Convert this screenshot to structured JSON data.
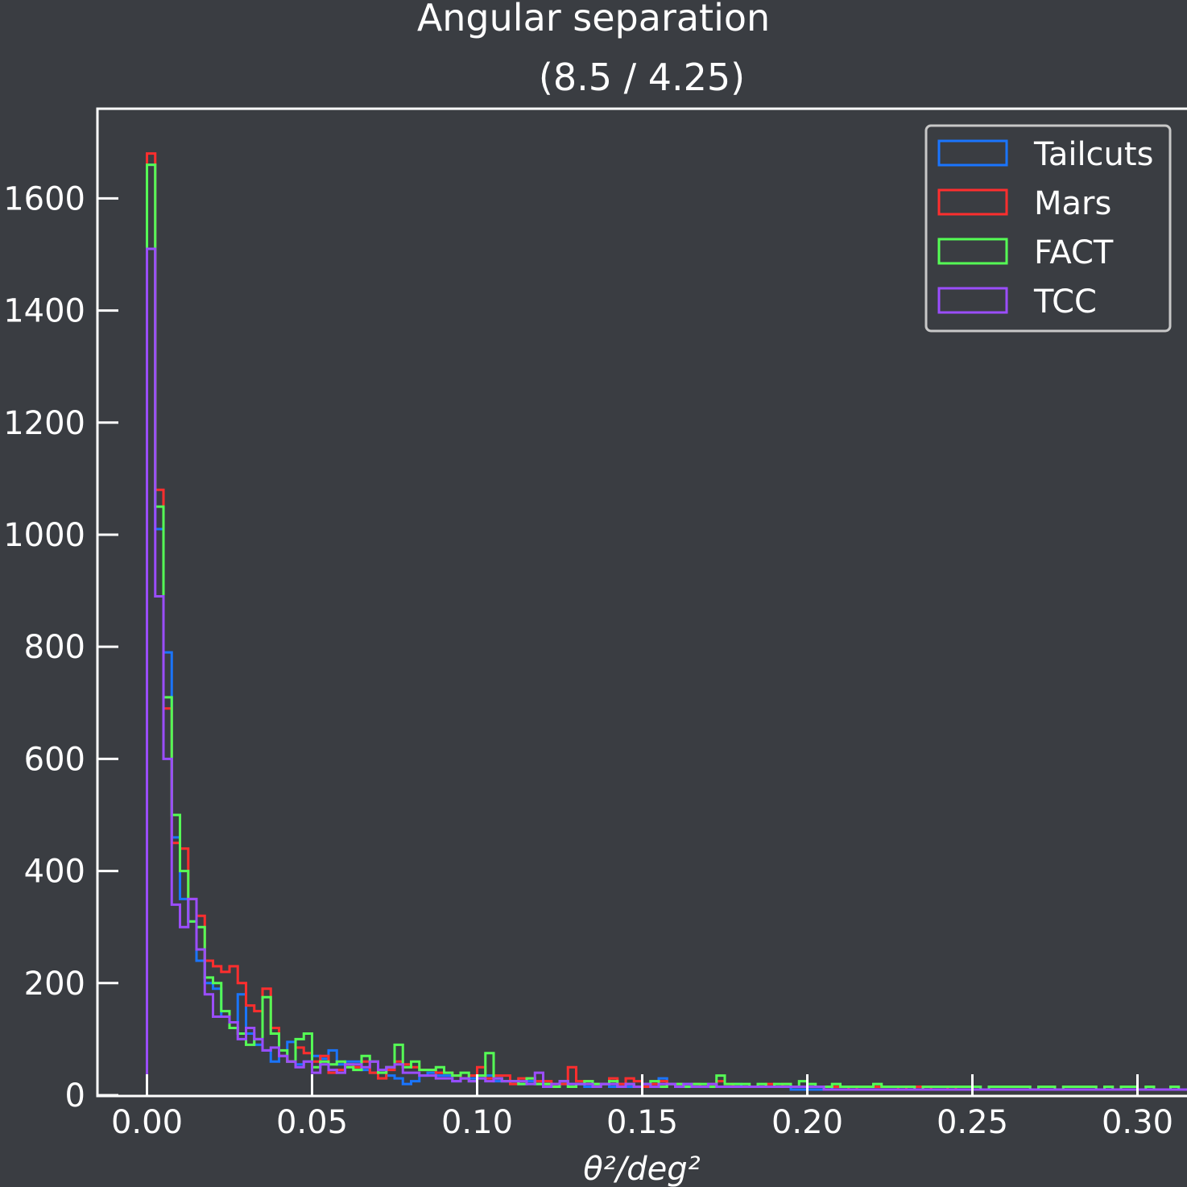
{
  "chart_data": {
    "type": "step-histogram",
    "title": "Angular separation",
    "subtitle": "(8.5 / 4.25)",
    "xlabel": "θ²/deg²",
    "ylabel": "",
    "xlim": [
      -0.015,
      0.315
    ],
    "ylim": [
      0,
      1760
    ],
    "xticks": [
      0.0,
      0.05,
      0.1,
      0.15,
      0.2,
      0.25,
      0.3
    ],
    "xtick_labels": [
      "0.00",
      "0.05",
      "0.10",
      "0.15",
      "0.20",
      "0.25",
      "0.30"
    ],
    "yticks": [
      0,
      200,
      400,
      600,
      800,
      1000,
      1200,
      1400,
      1600
    ],
    "ytick_labels": [
      "0",
      "200",
      "400",
      "600",
      "800",
      "1000",
      "1200",
      "1400",
      "1600"
    ],
    "grid": false,
    "legend_position": "top-right",
    "bin_start": 0.0,
    "bin_width": 0.0025,
    "series": [
      {
        "name": "Tailcuts",
        "color": "#1a75ff",
        "values": [
          1660,
          1010,
          790,
          460,
          350,
          310,
          240,
          200,
          190,
          140,
          130,
          180,
          110,
          90,
          80,
          60,
          70,
          95,
          55,
          60,
          70,
          65,
          80,
          55,
          60,
          60,
          45,
          40,
          45,
          35,
          30,
          20,
          25,
          35,
          40,
          35,
          35,
          25,
          30,
          30,
          30,
          35,
          25,
          25,
          25,
          20,
          25,
          20,
          20,
          15,
          20,
          20,
          20,
          15,
          20,
          20,
          15,
          20,
          15,
          15,
          15,
          15,
          30,
          20,
          15,
          20,
          20,
          15,
          15,
          15,
          15,
          20,
          15,
          15,
          15,
          15,
          15,
          15,
          10,
          10,
          10,
          10,
          15,
          10,
          10,
          10,
          10,
          10,
          10,
          10,
          10,
          10,
          10,
          10,
          10,
          10,
          10,
          10,
          10,
          10,
          10,
          10,
          10,
          10,
          10,
          10,
          10,
          10,
          10,
          10,
          10,
          10,
          10,
          10,
          10,
          10,
          10,
          10,
          10,
          10,
          10,
          10,
          10,
          10,
          10,
          10,
          10,
          10,
          10,
          10,
          10,
          10,
          10,
          10,
          10,
          10,
          10,
          10,
          10,
          10,
          10,
          10,
          10,
          10,
          10,
          10,
          10,
          10,
          10,
          10,
          10,
          10,
          10,
          10,
          10,
          10,
          10,
          10,
          10,
          10,
          10,
          10,
          10,
          10,
          10,
          10,
          10,
          10,
          10,
          10,
          10,
          10,
          10,
          10,
          10,
          10,
          10,
          10,
          10,
          10,
          10,
          10,
          10,
          10,
          10,
          10,
          10,
          10,
          10,
          10,
          10,
          10,
          10,
          10,
          10,
          10,
          10,
          10,
          10,
          10,
          10,
          10,
          10,
          10,
          10,
          10,
          10,
          10,
          10,
          10,
          10,
          10,
          10,
          10,
          10,
          10,
          10,
          10,
          10,
          10,
          10,
          10,
          10,
          10,
          10,
          10,
          10,
          10,
          10,
          25,
          10,
          10,
          10,
          10,
          10,
          10,
          10
        ]
      },
      {
        "name": "Mars",
        "color": "#ff2e2e",
        "values": [
          1680,
          1080,
          690,
          450,
          440,
          350,
          320,
          240,
          230,
          220,
          230,
          200,
          160,
          150,
          190,
          120,
          70,
          60,
          85,
          75,
          60,
          70,
          40,
          45,
          55,
          50,
          60,
          40,
          30,
          45,
          60,
          55,
          50,
          45,
          45,
          40,
          40,
          35,
          30,
          35,
          50,
          30,
          35,
          35,
          20,
          30,
          30,
          25,
          25,
          20,
          20,
          50,
          25,
          25,
          20,
          20,
          30,
          20,
          30,
          25,
          15,
          20,
          25,
          20,
          20,
          15,
          20,
          15,
          20,
          25,
          20,
          15,
          15,
          15,
          15,
          20,
          15,
          20,
          15,
          15,
          15,
          15,
          15,
          15,
          15,
          10,
          15,
          15,
          15,
          15,
          15,
          10,
          15,
          15,
          15,
          10,
          10,
          15,
          10,
          10,
          10,
          10,
          10,
          10,
          10,
          10,
          10,
          10,
          10,
          10,
          10,
          10,
          10,
          10,
          10,
          10,
          10,
          10,
          10,
          10,
          10,
          10,
          10,
          10,
          10,
          10,
          10,
          10,
          10,
          10,
          10,
          10,
          10,
          10,
          10,
          10,
          10,
          10,
          10,
          10,
          10,
          10,
          10,
          10,
          10,
          10,
          10,
          10,
          10,
          10,
          10,
          10,
          10,
          10,
          10,
          10,
          10,
          10,
          10,
          10,
          10,
          10,
          10,
          10,
          10,
          10,
          10,
          10,
          10,
          10,
          10,
          10,
          10,
          10,
          10,
          10,
          10,
          10,
          10,
          10,
          10,
          10,
          10,
          10,
          10,
          10,
          10,
          10,
          10,
          10,
          10,
          10,
          10,
          10,
          10,
          10,
          10,
          10,
          10,
          10,
          10,
          10,
          10,
          10,
          10,
          10,
          10,
          10,
          10,
          10,
          10,
          10,
          10,
          10,
          10,
          10,
          10,
          10,
          10,
          10,
          10,
          10,
          10,
          10,
          10,
          10,
          10,
          10,
          10,
          10,
          10,
          10,
          10,
          10,
          10,
          10,
          10,
          10,
          10,
          10,
          10,
          10,
          10,
          10,
          10
        ]
      },
      {
        "name": "FACT",
        "color": "#55ff55",
        "values": [
          1660,
          1050,
          710,
          500,
          400,
          310,
          300,
          210,
          200,
          150,
          120,
          110,
          90,
          100,
          175,
          110,
          80,
          60,
          100,
          110,
          50,
          60,
          55,
          60,
          50,
          45,
          70,
          60,
          40,
          50,
          90,
          50,
          60,
          45,
          45,
          50,
          40,
          35,
          40,
          25,
          35,
          75,
          30,
          25,
          25,
          20,
          30,
          20,
          20,
          15,
          25,
          15,
          20,
          25,
          20,
          20,
          25,
          15,
          20,
          15,
          20,
          25,
          15,
          20,
          20,
          15,
          20,
          20,
          15,
          35,
          20,
          20,
          20,
          15,
          20,
          15,
          20,
          20,
          15,
          25,
          20,
          15,
          15,
          20,
          15,
          15,
          15,
          15,
          20,
          15,
          15,
          15,
          15,
          10,
          15,
          15,
          15,
          15,
          15,
          15,
          15,
          10,
          15,
          15,
          15,
          15,
          15,
          10,
          15,
          15,
          10,
          15,
          15,
          15,
          15,
          10,
          15,
          10,
          15,
          15,
          10,
          15,
          10,
          10,
          15,
          10,
          10,
          10,
          10,
          10,
          10,
          10,
          10,
          10,
          10,
          10,
          10,
          10,
          10,
          10,
          10,
          10,
          10,
          10,
          10,
          10,
          10,
          10,
          10,
          10,
          10,
          10,
          10,
          10,
          10,
          10,
          10,
          10,
          10,
          10,
          10,
          10,
          10,
          10,
          10,
          10,
          10,
          10,
          10,
          10,
          10,
          10,
          10,
          10,
          10,
          10,
          10,
          10,
          10,
          10,
          10,
          10,
          10,
          10,
          10,
          10,
          10,
          10,
          10,
          10,
          10,
          10,
          10,
          10,
          10,
          10,
          10,
          10,
          10,
          10,
          10,
          10,
          10,
          10,
          10,
          10,
          10,
          10,
          10,
          10,
          10,
          10,
          10,
          10,
          10,
          10,
          10,
          10,
          10,
          10,
          10,
          10,
          10,
          10,
          10,
          10,
          10,
          10,
          10,
          10,
          10,
          10,
          10,
          10,
          10,
          10,
          10,
          10,
          10,
          10,
          10,
          10,
          10,
          10,
          10,
          10
        ]
      },
      {
        "name": "TCC",
        "color": "#9b4dff",
        "values": [
          1510,
          890,
          600,
          340,
          300,
          350,
          260,
          180,
          140,
          140,
          130,
          100,
          120,
          100,
          80,
          85,
          70,
          60,
          50,
          60,
          40,
          55,
          45,
          40,
          55,
          55,
          50,
          60,
          45,
          50,
          55,
          40,
          40,
          35,
          35,
          30,
          30,
          25,
          30,
          25,
          30,
          25,
          30,
          25,
          25,
          25,
          20,
          40,
          15,
          20,
          25,
          20,
          20,
          20,
          15,
          20,
          20,
          15,
          20,
          15,
          20,
          15,
          20,
          20,
          15,
          20,
          15,
          15,
          20,
          15,
          15,
          15,
          15,
          15,
          15,
          15,
          15,
          15,
          15,
          15,
          15,
          15,
          10,
          10,
          10,
          10,
          10,
          10,
          10,
          10,
          10,
          10,
          10,
          10,
          10,
          10,
          10,
          10,
          10,
          10,
          10,
          10,
          10,
          10,
          10,
          10,
          10,
          10,
          10,
          10,
          10,
          10,
          10,
          10,
          10,
          10,
          10,
          10,
          10,
          10,
          10,
          10,
          10,
          10,
          10,
          10,
          10,
          10,
          10,
          10,
          10,
          10,
          10,
          10,
          10,
          10,
          10,
          10,
          10,
          10,
          10,
          10,
          10,
          10,
          10,
          10,
          10,
          10,
          10,
          10,
          10,
          10,
          10,
          10,
          10,
          10,
          10,
          10,
          10,
          10,
          10,
          10,
          10,
          10,
          10,
          10,
          10,
          10,
          10,
          10,
          10,
          10,
          10,
          10,
          10,
          10,
          10,
          10,
          10,
          10,
          10,
          10,
          10,
          10,
          10,
          10,
          10,
          10,
          10,
          10,
          10,
          10,
          10,
          10,
          10,
          10,
          10,
          10,
          10,
          10,
          10,
          10,
          10,
          10,
          10,
          10,
          10,
          10,
          10,
          10,
          10,
          10,
          10,
          10,
          10,
          10,
          10,
          10,
          10,
          10,
          10,
          10,
          10,
          10,
          10,
          10,
          10,
          10,
          10,
          10,
          10,
          10,
          10,
          10,
          10,
          10,
          10,
          10,
          10,
          10,
          10,
          10,
          10,
          10,
          10,
          10,
          10,
          10
        ]
      }
    ]
  }
}
